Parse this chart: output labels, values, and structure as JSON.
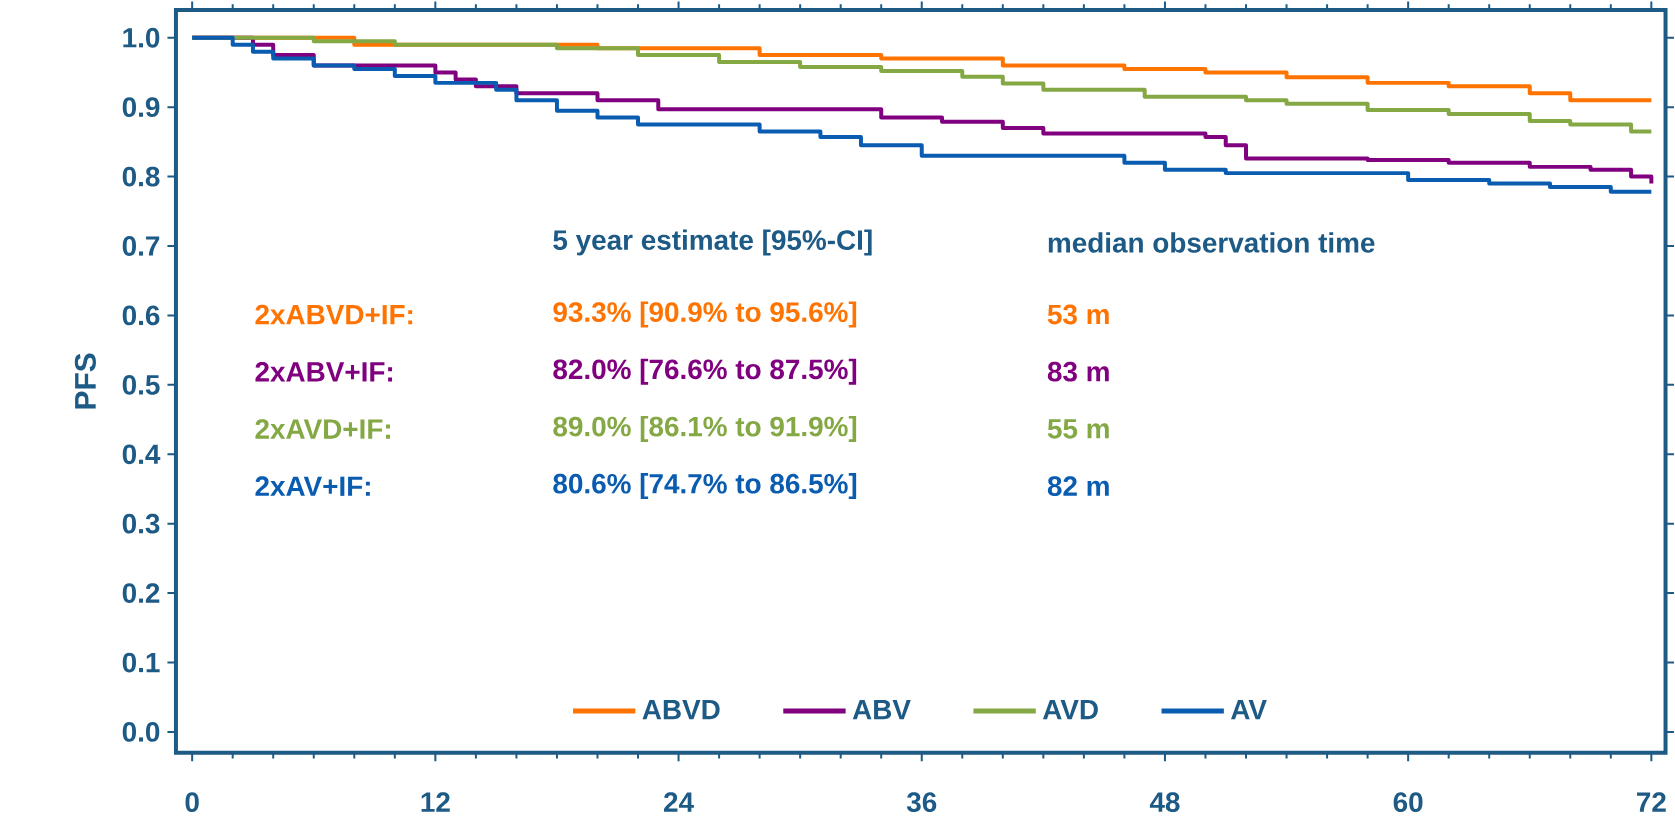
{
  "chart_data": {
    "type": "step",
    "ylabel": "PFS",
    "xlim": [
      -0.8,
      72.7
    ],
    "ylim": [
      -0.03,
      1.04
    ],
    "xticks": [
      0,
      12,
      24,
      36,
      48,
      60,
      72
    ],
    "yticks": [
      {
        "value": 0,
        "label": "0.0"
      },
      {
        "value": 0.1,
        "label": "0.1"
      },
      {
        "value": 0.2,
        "label": "0.2"
      },
      {
        "value": 0.3,
        "label": "0.3"
      },
      {
        "value": 0.4,
        "label": "0.4"
      },
      {
        "value": 0.5,
        "label": "0.5"
      },
      {
        "value": 0.6,
        "label": "0.6"
      },
      {
        "value": 0.7,
        "label": "0.7"
      },
      {
        "value": 0.8,
        "label": "0.8"
      },
      {
        "value": 0.9,
        "label": "0.9"
      },
      {
        "value": 1,
        "label": "1.0"
      }
    ],
    "legend": "bottom",
    "series": [
      {
        "name": "ABVD",
        "color": "#ff7300",
        "x": [
          0,
          8,
          20,
          28,
          34,
          40,
          46,
          50,
          54,
          58,
          62,
          66,
          68,
          72
        ],
        "values": [
          1,
          0.99,
          0.985,
          0.975,
          0.97,
          0.96,
          0.955,
          0.95,
          0.943,
          0.935,
          0.93,
          0.92,
          0.91,
          0.91
        ]
      },
      {
        "name": "ABV",
        "color": "#800080",
        "x": [
          0,
          3,
          4,
          6,
          12,
          13,
          14,
          16,
          20,
          23,
          34,
          37,
          40,
          42,
          50,
          51,
          52,
          58,
          62,
          66,
          69,
          71,
          72
        ],
        "values": [
          1,
          0.99,
          0.975,
          0.96,
          0.95,
          0.94,
          0.93,
          0.92,
          0.91,
          0.897,
          0.885,
          0.879,
          0.87,
          0.862,
          0.857,
          0.845,
          0.826,
          0.824,
          0.82,
          0.814,
          0.81,
          0.8,
          0.79
        ]
      },
      {
        "name": "AVD",
        "color": "#84a844",
        "x": [
          0,
          6,
          10,
          18,
          22,
          26,
          30,
          34,
          38,
          40,
          42,
          47,
          52,
          54,
          58,
          62,
          66,
          68,
          71,
          72
        ],
        "values": [
          1,
          0.995,
          0.99,
          0.985,
          0.975,
          0.965,
          0.958,
          0.952,
          0.944,
          0.934,
          0.925,
          0.915,
          0.91,
          0.905,
          0.896,
          0.89,
          0.88,
          0.875,
          0.865,
          0.865
        ]
      },
      {
        "name": "AV",
        "color": "#0a5cb0",
        "x": [
          0,
          2,
          3,
          4,
          6,
          8,
          10,
          12,
          15,
          16,
          18,
          20,
          22,
          28,
          31,
          33,
          36,
          46,
          48,
          51,
          57,
          60,
          64,
          67,
          70,
          72
        ],
        "values": [
          1,
          0.99,
          0.98,
          0.97,
          0.96,
          0.955,
          0.945,
          0.935,
          0.925,
          0.91,
          0.895,
          0.885,
          0.875,
          0.865,
          0.857,
          0.845,
          0.83,
          0.82,
          0.81,
          0.805,
          0.805,
          0.795,
          0.79,
          0.785,
          0.778,
          0.778
        ]
      }
    ],
    "annotations": [
      "5 year estimate [95%-CI]",
      "median observation time",
      "2xABVD+IF:",
      "93.3% [90.9% to 95.6%]",
      "53 m",
      "2xABV+IF:",
      "82.0% [76.6% to 87.5%]",
      "83 m",
      "2xAVD+IF:",
      "89.0% [86.1% to 91.9%]",
      "55 m",
      "2xAV+IF:",
      "80.6% [74.7% to 86.5%]",
      "82 m"
    ]
  }
}
